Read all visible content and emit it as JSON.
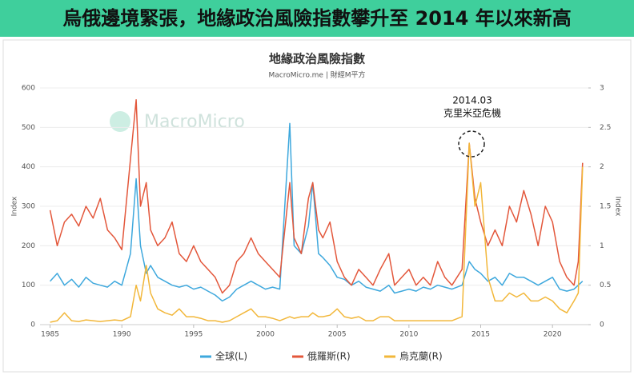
{
  "header": {
    "title": "烏俄邊境緊張，地緣政治風險指數攀升至 2014 年以來新高"
  },
  "chart_data": {
    "type": "line",
    "title": "地緣政治風險指數",
    "subtitle": "MacroMicro.me | 財經M平方",
    "watermark": "MacroMicro",
    "y_label": "Index",
    "y2_label": "Index",
    "annotation": {
      "label": "2014.03",
      "text": "克里米亞危機"
    },
    "xlim": [
      1984.3,
      2022.5
    ],
    "xticks": [
      1985,
      1990,
      1995,
      2000,
      2005,
      2010,
      2015,
      2020
    ],
    "ylim": [
      0,
      600
    ],
    "yticks": [
      0,
      100,
      200,
      300,
      400,
      500,
      600
    ],
    "y2lim": [
      0,
      3
    ],
    "y2ticks": [
      0,
      0.5,
      1,
      1.5,
      2,
      2.5,
      3
    ],
    "grid": true,
    "legend": "bottom",
    "x": [
      1985,
      1985.5,
      1986,
      1986.5,
      1987,
      1987.5,
      1988,
      1988.5,
      1989,
      1989.5,
      1990,
      1990.6,
      1991,
      1991.3,
      1991.7,
      1992,
      1992.5,
      1993,
      1993.5,
      1994,
      1994.5,
      1995,
      1995.5,
      1996,
      1996.5,
      1997,
      1997.5,
      1998,
      1998.5,
      1999,
      1999.5,
      2000,
      2000.5,
      2001,
      2001.7,
      2002,
      2002.5,
      2003,
      2003.3,
      2003.7,
      2004,
      2004.5,
      2005,
      2005.5,
      2006,
      2006.5,
      2007,
      2007.5,
      2008,
      2008.6,
      2009,
      2009.5,
      2010,
      2010.5,
      2011,
      2011.5,
      2012,
      2012.5,
      2013,
      2013.7,
      2014.2,
      2014.6,
      2015,
      2015.5,
      2016,
      2016.5,
      2017,
      2017.5,
      2018,
      2018.5,
      2019,
      2019.5,
      2020,
      2020.5,
      2021,
      2021.5,
      2021.8,
      2022.1
    ],
    "series": [
      {
        "name": "全球(L)",
        "color": "#3ea8dd",
        "axis": "y",
        "values": [
          110,
          130,
          100,
          115,
          95,
          120,
          105,
          100,
          95,
          110,
          100,
          180,
          370,
          200,
          130,
          150,
          120,
          110,
          100,
          95,
          100,
          90,
          95,
          85,
          75,
          60,
          70,
          90,
          100,
          110,
          100,
          90,
          95,
          90,
          510,
          200,
          180,
          250,
          360,
          180,
          170,
          150,
          120,
          115,
          100,
          110,
          95,
          90,
          85,
          100,
          80,
          85,
          90,
          85,
          95,
          90,
          100,
          95,
          90,
          100,
          160,
          140,
          130,
          110,
          120,
          100,
          130,
          120,
          120,
          110,
          100,
          110,
          120,
          90,
          85,
          90,
          100,
          110
        ]
      },
      {
        "name": "俄羅斯(R)",
        "color": "#e3573b",
        "axis": "y2",
        "values": [
          1.45,
          1.0,
          1.3,
          1.4,
          1.25,
          1.5,
          1.35,
          1.6,
          1.2,
          1.1,
          0.95,
          2.1,
          2.85,
          1.5,
          1.8,
          1.2,
          1.0,
          1.1,
          1.3,
          0.9,
          0.8,
          1.0,
          0.8,
          0.7,
          0.6,
          0.4,
          0.5,
          0.8,
          0.9,
          1.1,
          0.9,
          0.8,
          0.7,
          0.6,
          1.8,
          1.1,
          0.9,
          1.6,
          1.8,
          1.2,
          1.1,
          1.3,
          0.8,
          0.6,
          0.5,
          0.7,
          0.6,
          0.5,
          0.7,
          0.9,
          0.5,
          0.6,
          0.7,
          0.5,
          0.6,
          0.5,
          0.8,
          0.6,
          0.5,
          0.7,
          2.3,
          1.6,
          1.3,
          1.0,
          1.2,
          1.0,
          1.5,
          1.3,
          1.7,
          1.4,
          1.0,
          1.5,
          1.3,
          0.8,
          0.6,
          0.5,
          0.8,
          2.05
        ]
      },
      {
        "name": "烏克蘭(R)",
        "color": "#f2b73a",
        "axis": "y2",
        "values": [
          0.03,
          0.05,
          0.15,
          0.05,
          0.04,
          0.06,
          0.05,
          0.04,
          0.05,
          0.06,
          0.05,
          0.1,
          0.5,
          0.3,
          0.75,
          0.4,
          0.2,
          0.15,
          0.12,
          0.2,
          0.1,
          0.1,
          0.08,
          0.05,
          0.05,
          0.03,
          0.05,
          0.1,
          0.15,
          0.2,
          0.1,
          0.1,
          0.08,
          0.05,
          0.1,
          0.08,
          0.1,
          0.1,
          0.15,
          0.1,
          0.1,
          0.12,
          0.2,
          0.1,
          0.08,
          0.1,
          0.05,
          0.05,
          0.1,
          0.1,
          0.05,
          0.05,
          0.05,
          0.05,
          0.05,
          0.05,
          0.05,
          0.05,
          0.05,
          0.1,
          2.3,
          1.5,
          1.8,
          0.6,
          0.3,
          0.3,
          0.4,
          0.35,
          0.4,
          0.3,
          0.3,
          0.35,
          0.3,
          0.2,
          0.15,
          0.3,
          0.4,
          2.0
        ]
      }
    ]
  }
}
